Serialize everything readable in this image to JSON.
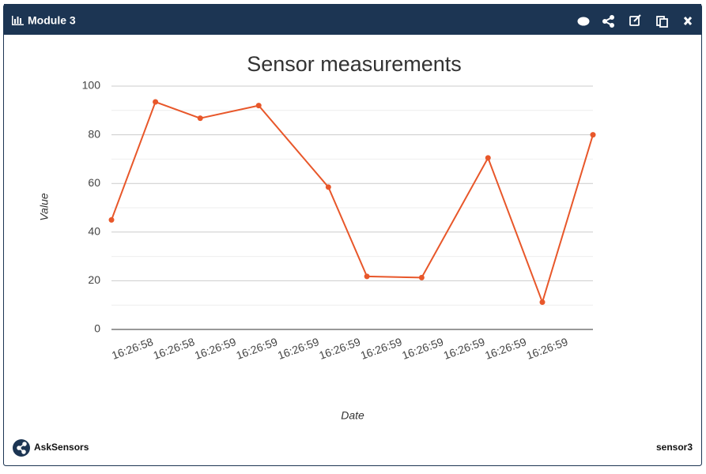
{
  "header": {
    "title": "Module 3"
  },
  "chart_data": {
    "type": "line",
    "title": "Sensor measurements",
    "x_label": "Date",
    "y_label": "Value",
    "x": [
      58.7,
      58.806,
      58.914,
      59.055,
      59.223,
      59.316,
      59.448,
      59.608,
      59.739,
      59.861
    ],
    "series": [
      {
        "color": "#e8572a",
        "values": [
          45,
          93.5,
          86.8,
          92,
          58.5,
          21.8,
          21.3,
          70.5,
          11.2,
          80
        ]
      }
    ],
    "xlim": [
      58.7,
      59.861
    ],
    "xticks": [
      {
        "value": 58.8,
        "label": "16:26:58"
      },
      {
        "value": 58.9,
        "label": "16:26:58"
      },
      {
        "value": 59.0,
        "label": "16:26:59"
      },
      {
        "value": 59.1,
        "label": "16:26:59"
      },
      {
        "value": 59.2,
        "label": "16:26:59"
      },
      {
        "value": 59.3,
        "label": "16:26:59"
      },
      {
        "value": 59.4,
        "label": "16:26:59"
      },
      {
        "value": 59.5,
        "label": "16:26:59"
      },
      {
        "value": 59.6,
        "label": "16:26:59"
      },
      {
        "value": 59.7,
        "label": "16:26:59"
      },
      {
        "value": 59.8,
        "label": "16:26:59"
      }
    ],
    "ylim": [
      0,
      100
    ],
    "yticks": [
      0,
      20,
      40,
      60,
      80,
      100
    ],
    "grid": true
  },
  "footer": {
    "brand": "AskSensors",
    "device": "sensor3"
  }
}
